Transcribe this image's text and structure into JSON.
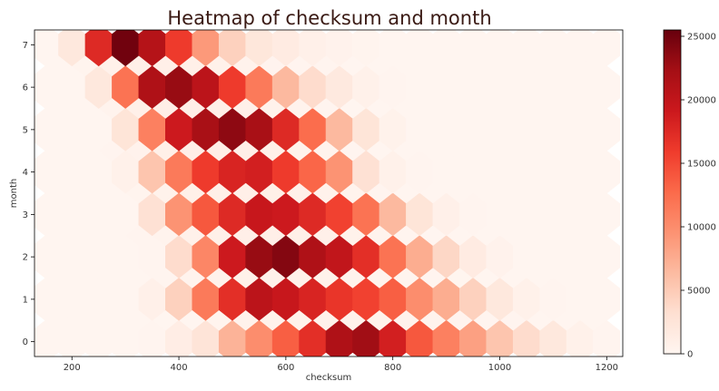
{
  "chart_data": {
    "type": "heatmap",
    "subtype": "hexbin",
    "title": "Heatmap of checksum and month",
    "xlabel": "checksum",
    "ylabel": "month",
    "xlim": [
      130,
      1230
    ],
    "ylim": [
      -0.35,
      7.35
    ],
    "x_ticks": [
      200,
      400,
      600,
      800,
      1000,
      1200
    ],
    "y_ticks": [
      0,
      1,
      2,
      3,
      4,
      5,
      6,
      7
    ],
    "colormap": "Reds",
    "color_min": 0,
    "color_max": 25500,
    "colorbar_ticks": [
      0,
      5000,
      10000,
      15000,
      20000,
      25000
    ],
    "grid": false,
    "hex_centers_x": [
      150,
      200,
      250,
      300,
      350,
      400,
      450,
      500,
      550,
      600,
      650,
      700,
      750,
      800,
      850,
      900,
      950,
      1000,
      1050,
      1100,
      1150,
      1200
    ],
    "rows": [
      {
        "month": 0,
        "values": [
          0,
          0,
          0,
          0,
          120,
          1200,
          2600,
          7000,
          10000,
          13500,
          17000,
          21500,
          22500,
          18500,
          14000,
          11000,
          8500,
          5500,
          3500,
          2000,
          600,
          150
        ]
      },
      {
        "month": 1,
        "values": [
          0,
          0,
          0,
          0,
          700,
          4500,
          11500,
          17000,
          20500,
          19500,
          18000,
          16500,
          15500,
          13500,
          10000,
          7500,
          4500,
          2000,
          600,
          100,
          0,
          0
        ]
      },
      {
        "month": 2,
        "values": [
          0,
          0,
          0,
          0,
          150,
          3500,
          10500,
          19000,
          23000,
          24000,
          21500,
          20000,
          17000,
          12000,
          7500,
          4000,
          1500,
          400,
          50,
          0,
          0,
          0
        ]
      },
      {
        "month": 3,
        "values": [
          0,
          0,
          0,
          0,
          3000,
          9500,
          14000,
          17500,
          19500,
          19000,
          17500,
          15500,
          12000,
          6500,
          2500,
          700,
          100,
          0,
          0,
          0,
          0,
          0
        ]
      },
      {
        "month": 4,
        "values": [
          0,
          0,
          0,
          600,
          5500,
          11500,
          16000,
          18000,
          18500,
          16000,
          13000,
          9500,
          3000,
          600,
          100,
          0,
          0,
          0,
          0,
          0,
          0,
          0
        ]
      },
      {
        "month": 5,
        "values": [
          0,
          0,
          0,
          2500,
          11000,
          19000,
          22000,
          23500,
          22000,
          17500,
          12500,
          6500,
          2500,
          500,
          50,
          0,
          0,
          0,
          0,
          0,
          0,
          0
        ]
      },
      {
        "month": 6,
        "values": [
          0,
          0,
          2000,
          12000,
          21500,
          23000,
          20500,
          16000,
          11500,
          6500,
          3500,
          1800,
          600,
          150,
          0,
          0,
          0,
          0,
          0,
          0,
          0,
          0
        ]
      },
      {
        "month": 7,
        "values": [
          0,
          2000,
          17500,
          25000,
          21000,
          16000,
          9000,
          4500,
          2200,
          1500,
          700,
          400,
          200,
          0,
          0,
          0,
          0,
          0,
          0,
          0,
          0,
          0
        ]
      }
    ],
    "half_rows": [
      {
        "month": 0.5,
        "values": [
          0,
          0,
          0,
          0,
          0,
          50,
          200,
          400,
          500,
          500,
          500,
          500,
          500,
          450,
          350,
          250,
          150,
          80,
          30,
          0,
          0
        ]
      },
      {
        "month": 1.5,
        "values": [
          0,
          0,
          0,
          0,
          100,
          300,
          500,
          600,
          600,
          600,
          500,
          400,
          300,
          200,
          120,
          60,
          20,
          0,
          0,
          0,
          0
        ]
      },
      {
        "month": 2.5,
        "values": [
          0,
          0,
          0,
          100,
          300,
          600,
          800,
          900,
          900,
          800,
          700,
          500,
          300,
          150,
          50,
          0,
          0,
          0,
          0,
          0,
          0
        ]
      },
      {
        "month": 3.5,
        "values": [
          0,
          0,
          0,
          200,
          500,
          800,
          900,
          900,
          800,
          700,
          500,
          300,
          100,
          30,
          0,
          0,
          0,
          0,
          0,
          0,
          0
        ]
      },
      {
        "month": 4.5,
        "values": [
          0,
          0,
          100,
          400,
          800,
          1000,
          1000,
          900,
          700,
          500,
          300,
          100,
          30,
          0,
          0,
          0,
          0,
          0,
          0,
          0,
          0
        ]
      },
      {
        "month": 5.5,
        "values": [
          0,
          50,
          300,
          700,
          1000,
          1000,
          900,
          700,
          500,
          300,
          150,
          50,
          0,
          0,
          0,
          0,
          0,
          0,
          0,
          0,
          0
        ]
      },
      {
        "month": 6.5,
        "values": [
          0,
          200,
          600,
          900,
          900,
          800,
          600,
          400,
          250,
          150,
          80,
          30,
          0,
          0,
          0,
          0,
          0,
          0,
          0,
          0,
          0
        ]
      }
    ]
  }
}
